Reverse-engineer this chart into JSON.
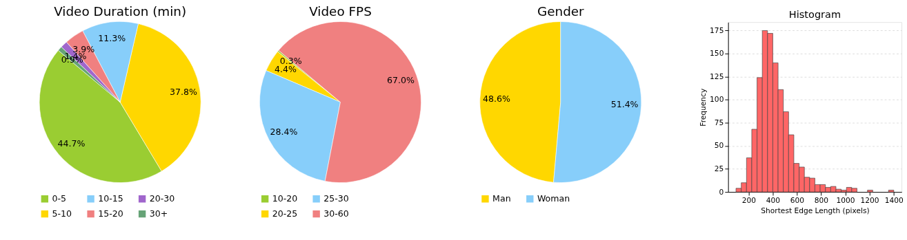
{
  "chart_data": [
    {
      "type": "pie",
      "title": "Video Duration (min)",
      "categories": [
        "0-5",
        "5-10",
        "10-15",
        "15-20",
        "20-30",
        "30+"
      ],
      "values": [
        44.7,
        37.8,
        11.3,
        3.9,
        1.4,
        0.9
      ],
      "value_labels": [
        "44.7%",
        "37.8%",
        "11.3%",
        "3.9%",
        "1.4%",
        "0.9%"
      ],
      "colors": [
        "#9acd32",
        "#ffd700",
        "#87cefa",
        "#f08080",
        "#a066cc",
        "#66a377"
      ],
      "legend": "bottom"
    },
    {
      "type": "pie",
      "title": "Video FPS",
      "categories": [
        "10-20",
        "20-25",
        "25-30",
        "30-60"
      ],
      "values": [
        0.3,
        4.4,
        28.4,
        67.0
      ],
      "value_labels": [
        "0.3%",
        "4.4%",
        "28.4%",
        "67.0%"
      ],
      "colors": [
        "#9acd32",
        "#ffd700",
        "#87cefa",
        "#f08080"
      ],
      "legend": "bottom"
    },
    {
      "type": "pie",
      "title": "Gender",
      "categories": [
        "Man",
        "Woman"
      ],
      "values": [
        48.6,
        51.4
      ],
      "value_labels": [
        "48.6%",
        "51.4%"
      ],
      "colors": [
        "#ffd700",
        "#87cefa"
      ],
      "legend": "bottom"
    },
    {
      "type": "histogram",
      "title": "Histogram",
      "xlabel": "Shortest Edge Length (pixels)",
      "ylabel": "Frequency",
      "bins": [
        96,
        139.5,
        183,
        226.5,
        270,
        313.5,
        357,
        400.5,
        444,
        487.5,
        531,
        574.5,
        618,
        661.5,
        705,
        748.5,
        792,
        835.5,
        879,
        922.5,
        966,
        1009.5,
        1053,
        1096.5,
        1140,
        1183.5,
        1227,
        1270.5,
        1314,
        1357.5,
        1401
      ],
      "values": [
        4,
        10,
        37,
        68,
        124,
        175,
        172,
        140,
        111,
        87,
        62,
        31,
        27,
        16,
        15,
        8,
        8,
        5,
        6,
        3,
        2,
        5,
        4,
        0,
        0,
        2,
        0,
        0,
        0,
        2
      ],
      "color": "#ff6666",
      "xlim": [
        31,
        1466
      ],
      "ylim": [
        0,
        184
      ],
      "xticks": [
        200,
        400,
        600,
        800,
        {
          "value": 1000,
          "label": "1000"
        },
        {
          "value": 1200,
          "label": "1200"
        },
        {
          "value": 1400,
          "label": "1400"
        }
      ],
      "yticks": [
        0,
        25,
        50,
        75,
        100,
        125,
        150,
        175
      ],
      "grid": "y"
    }
  ]
}
